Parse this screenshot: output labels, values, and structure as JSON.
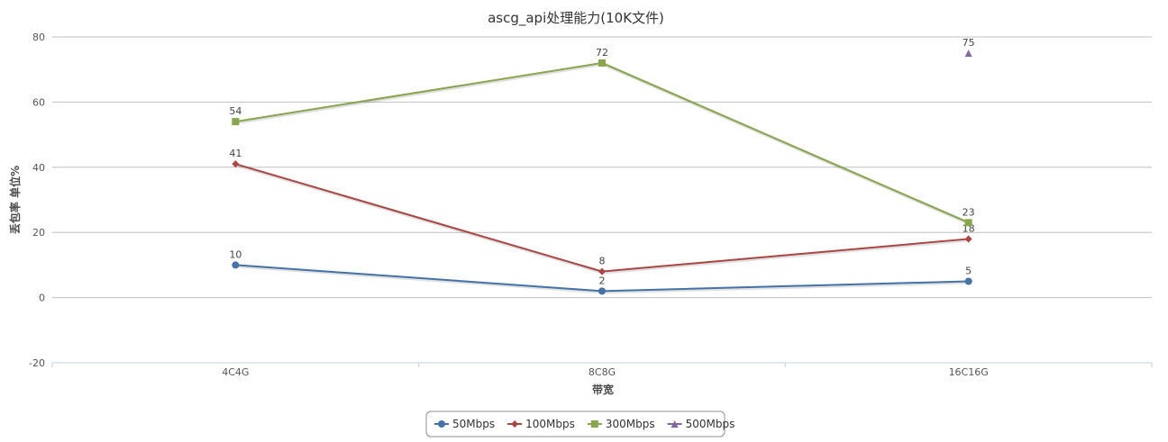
{
  "chart_data": {
    "type": "line",
    "title": "ascg_api处理能力(10K文件)",
    "xlabel": "带宽",
    "ylabel": "丢包率 单位%",
    "categories": [
      "4C4G",
      "8C8G",
      "16C16G"
    ],
    "ylim": [
      -20,
      80
    ],
    "yticks": [
      -20,
      0,
      20,
      40,
      60,
      80
    ],
    "grid": true,
    "legend_position": "bottom-center",
    "series": [
      {
        "name": "50Mbps",
        "values": [
          10,
          2,
          5
        ],
        "color": "#4572a7",
        "marker": "circle"
      },
      {
        "name": "100Mbps",
        "values": [
          41,
          8,
          18
        ],
        "color": "#aa4643",
        "marker": "diamond"
      },
      {
        "name": "300Mbps",
        "values": [
          54,
          72,
          23
        ],
        "color": "#89a54e",
        "marker": "square"
      },
      {
        "name": "500Mbps",
        "values": [
          null,
          null,
          75
        ],
        "color": "#80699b",
        "marker": "triangle"
      }
    ]
  }
}
